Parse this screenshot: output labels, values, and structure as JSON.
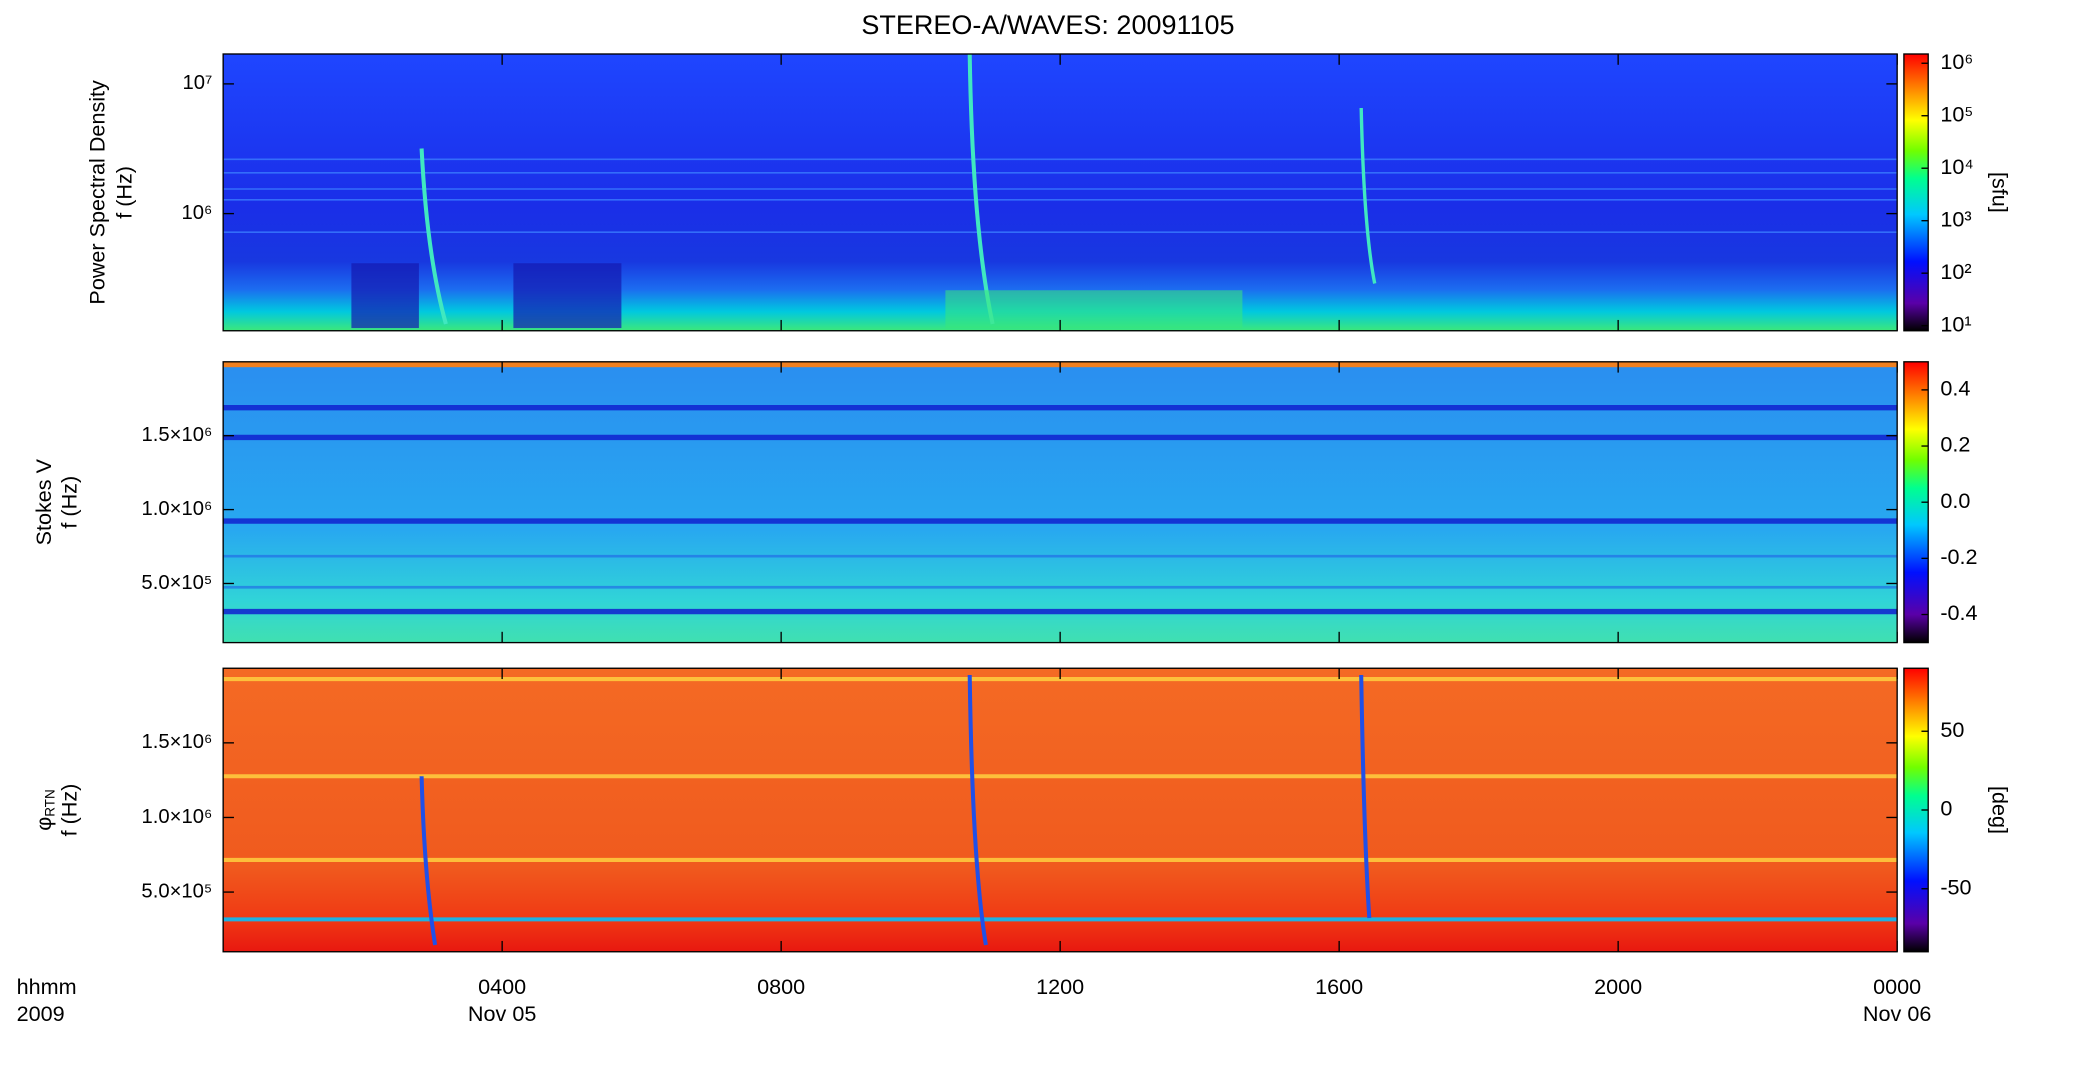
{
  "chart_data": {
    "type": "heatmap",
    "title": "STEREO-A/WAVES: 20091105",
    "x_label": "hhmm",
    "x_sublabel": "2009",
    "xlim": [
      0,
      24
    ],
    "xticks": [
      {
        "value": 4,
        "label": "0400"
      },
      {
        "value": 8,
        "label": "0800"
      },
      {
        "value": 12,
        "label": "1200"
      },
      {
        "value": 16,
        "label": "1600"
      },
      {
        "value": 20,
        "label": "2000"
      },
      {
        "value": 24,
        "label": "0000"
      }
    ],
    "x_date_labels": [
      {
        "value": 4,
        "label": "Nov 05"
      },
      {
        "value": 24,
        "label": "Nov 06"
      }
    ],
    "panels": [
      {
        "ylabel": "Power Spectral Density",
        "ylabel2": "f (Hz)",
        "yscale": "log",
        "ylim": [
          125000,
          17000000
        ],
        "yticks": [
          {
            "value": 1000000,
            "label": "10⁶"
          },
          {
            "value": 10000000,
            "label": "10⁷"
          }
        ],
        "colorbar": {
          "scale": "log",
          "lim": [
            8,
            1500000
          ],
          "label": "[sfu]",
          "ticks": [
            {
              "value": 10,
              "label": "10¹"
            },
            {
              "value": 100,
              "label": "10²"
            },
            {
              "value": 1000,
              "label": "10³"
            },
            {
              "value": 10000,
              "label": "10⁴"
            },
            {
              "value": 100000,
              "label": "10⁵"
            },
            {
              "value": 1000000,
              "label": "10⁶"
            }
          ]
        }
      },
      {
        "ylabel": "Stokes V",
        "ylabel2": "f (Hz)",
        "yscale": "linear",
        "ylim": [
          100000,
          2000000
        ],
        "yticks": [
          {
            "value": 500000,
            "label": "5.0×10⁵"
          },
          {
            "value": 1000000,
            "label": "1.0×10⁶"
          },
          {
            "value": 1500000,
            "label": "1.5×10⁶"
          }
        ],
        "colorbar": {
          "scale": "linear",
          "lim": [
            -0.5,
            0.5
          ],
          "ticks": [
            -0.4,
            -0.2,
            {
              "value": 0,
              "label": "0.0"
            },
            0.2,
            0.4
          ]
        }
      },
      {
        "ylabel": "φ",
        "ylabel_sub": "RTN",
        "ylabel2": "f (Hz)",
        "yscale": "linear",
        "ylim": [
          100000,
          2000000
        ],
        "yticks": [
          {
            "value": 500000,
            "label": "5.0×10⁵"
          },
          {
            "value": 1000000,
            "label": "1.0×10⁶"
          },
          {
            "value": 1500000,
            "label": "1.5×10⁶"
          }
        ],
        "colorbar": {
          "scale": "linear",
          "lim": [
            -90,
            90
          ],
          "label": "[deg]",
          "ticks": [
            -50,
            0,
            50
          ]
        }
      }
    ]
  }
}
